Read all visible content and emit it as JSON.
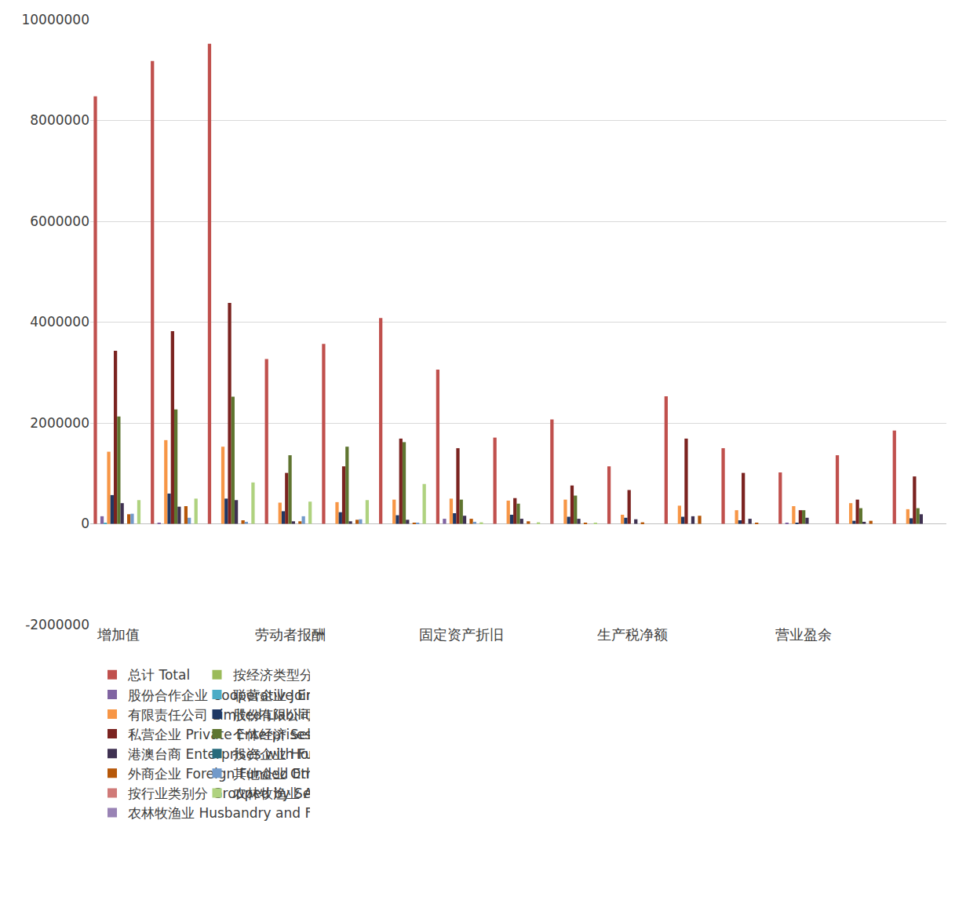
{
  "chart_data": {
    "type": "bar",
    "categories": [
      "增加值",
      null,
      null,
      "劳动者报酬",
      null,
      null,
      "固定资产折旧",
      null,
      null,
      "生产税净额",
      null,
      null,
      "营业盈余",
      null,
      null
    ],
    "series": [
      {
        "name": "总计 Total",
        "color": "#C0504D",
        "values": [
          8480000,
          9180000,
          9520000,
          3270000,
          3570000,
          4080000,
          3060000,
          1710000,
          2070000,
          1140000,
          2530000,
          1500000,
          1020000,
          1360000,
          1850000
        ]
      },
      {
        "name": "按经济类型分 By Economic Type Groups",
        "color": "#9BBB59",
        "values": [
          0,
          0,
          0,
          0,
          0,
          0,
          0,
          0,
          0,
          0,
          0,
          0,
          0,
          0,
          0
        ]
      },
      {
        "name": "股份合作企业 Cooperative Enterprises",
        "color": "#8064A2",
        "values": [
          150000,
          20000,
          0,
          0,
          0,
          0,
          100000,
          0,
          0,
          0,
          0,
          0,
          10000,
          0,
          0
        ]
      },
      {
        "name": "联营企业 Joint Ownership Enterprises",
        "color": "#4BACC6",
        "values": [
          10000,
          0,
          0,
          0,
          0,
          0,
          0,
          0,
          0,
          0,
          0,
          0,
          0,
          0,
          0
        ]
      },
      {
        "name": "有限责任公司 Limited Liability Corporations",
        "color": "#F79646",
        "values": [
          1430000,
          1660000,
          1530000,
          420000,
          430000,
          480000,
          500000,
          460000,
          480000,
          180000,
          360000,
          270000,
          350000,
          410000,
          290000
        ]
      },
      {
        "name": "股份有限公司 Share-holding Corporations Limited",
        "color": "#1F3864",
        "values": [
          570000,
          600000,
          500000,
          250000,
          230000,
          170000,
          210000,
          180000,
          140000,
          120000,
          140000,
          70000,
          10000,
          60000,
          110000
        ]
      },
      {
        "name": "私营企业 Private Enterprises",
        "color": "#7B2320",
        "values": [
          3430000,
          3820000,
          4380000,
          1010000,
          1140000,
          1690000,
          1500000,
          510000,
          760000,
          670000,
          1690000,
          1010000,
          270000,
          480000,
          940000
        ]
      },
      {
        "name": "个体经济 Self-employed Individual Economy",
        "color": "#5F7530",
        "values": [
          2130000,
          2270000,
          2520000,
          1360000,
          1530000,
          1620000,
          480000,
          400000,
          560000,
          0,
          0,
          0,
          270000,
          310000,
          310000
        ]
      },
      {
        "name": "港澳台商 Enterprises with Funds from",
        "color": "#3F3151",
        "values": [
          410000,
          340000,
          470000,
          50000,
          50000,
          80000,
          160000,
          100000,
          100000,
          90000,
          150000,
          100000,
          120000,
          40000,
          190000
        ]
      },
      {
        "name": "投资企业 Hong Kong, Macao and Taiwan",
        "color": "#276A7C",
        "values": [
          0,
          0,
          0,
          0,
          0,
          0,
          0,
          0,
          0,
          0,
          0,
          0,
          0,
          0,
          0
        ]
      },
      {
        "name": "外商企业 Foreign Funded Enterprises",
        "color": "#B65708",
        "values": [
          190000,
          350000,
          70000,
          50000,
          80000,
          20000,
          100000,
          50000,
          10000,
          30000,
          160000,
          20000,
          0,
          60000,
          0
        ]
      },
      {
        "name": "其他企业 Other Enterprises",
        "color": "#729ACA",
        "values": [
          200000,
          120000,
          40000,
          150000,
          90000,
          20000,
          40000,
          0,
          0,
          0,
          0,
          0,
          0,
          0,
          0
        ]
      },
      {
        "name": "按行业类别分 Grouped by Sector",
        "color": "#D07A78",
        "values": [
          0,
          0,
          0,
          0,
          0,
          0,
          0,
          0,
          0,
          0,
          0,
          0,
          0,
          0,
          0
        ]
      },
      {
        "name": "农林牧渔业 Agriculture,Forestry,Animal",
        "color": "#AFD27F",
        "values": [
          470000,
          500000,
          820000,
          440000,
          470000,
          790000,
          30000,
          30000,
          10000,
          0,
          0,
          0,
          0,
          0,
          0
        ]
      },
      {
        "name": "农林牧渔业 Husbandry and Fishery",
        "color": "#9983B5",
        "values": [
          0,
          0,
          0,
          0,
          0,
          0,
          0,
          0,
          0,
          0,
          0,
          0,
          0,
          0,
          0
        ]
      }
    ],
    "ylim": [
      -2000000,
      10000000
    ],
    "yticks": [
      -2000000,
      0,
      2000000,
      4000000,
      6000000,
      8000000,
      10000000
    ],
    "grid": true,
    "legend": "bottom"
  }
}
